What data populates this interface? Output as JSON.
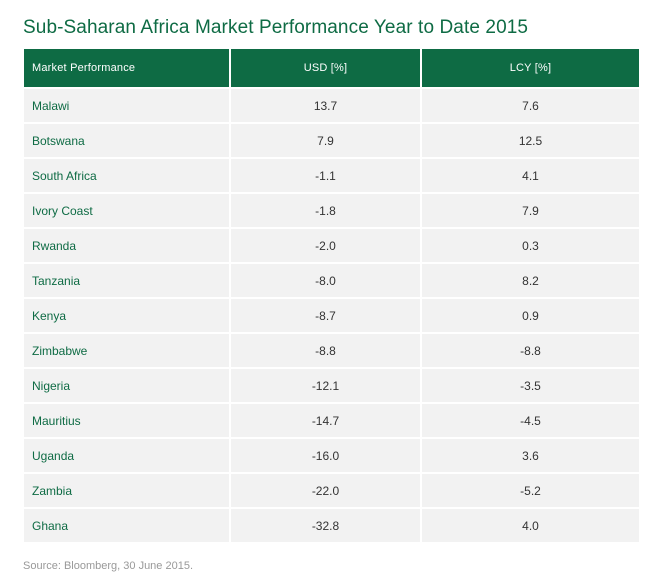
{
  "title": "Sub-Saharan Africa Market Performance Year to Date 2015",
  "colors": {
    "accent": "#0e6b44",
    "row_background": "#f2f2f2",
    "header_text": "#ffffff"
  },
  "table": {
    "headers": [
      "Market Performance",
      "USD [%]",
      "LCY [%]"
    ],
    "rows": [
      {
        "country": "Malawi",
        "usd": "13.7",
        "lcy": "7.6"
      },
      {
        "country": "Botswana",
        "usd": "7.9",
        "lcy": "12.5"
      },
      {
        "country": "South Africa",
        "usd": "-1.1",
        "lcy": "4.1"
      },
      {
        "country": "Ivory Coast",
        "usd": "-1.8",
        "lcy": "7.9"
      },
      {
        "country": "Rwanda",
        "usd": "-2.0",
        "lcy": "0.3"
      },
      {
        "country": "Tanzania",
        "usd": "-8.0",
        "lcy": "8.2"
      },
      {
        "country": "Kenya",
        "usd": "-8.7",
        "lcy": "0.9"
      },
      {
        "country": "Zimbabwe",
        "usd": "-8.8",
        "lcy": "-8.8"
      },
      {
        "country": "Nigeria",
        "usd": "-12.1",
        "lcy": "-3.5"
      },
      {
        "country": "Mauritius",
        "usd": "-14.7",
        "lcy": "-4.5"
      },
      {
        "country": "Uganda",
        "usd": "-16.0",
        "lcy": "3.6"
      },
      {
        "country": "Zambia",
        "usd": "-22.0",
        "lcy": "-5.2"
      },
      {
        "country": "Ghana",
        "usd": "-32.8",
        "lcy": "4.0"
      }
    ]
  },
  "source": "Source: Bloomberg, 30 June 2015."
}
